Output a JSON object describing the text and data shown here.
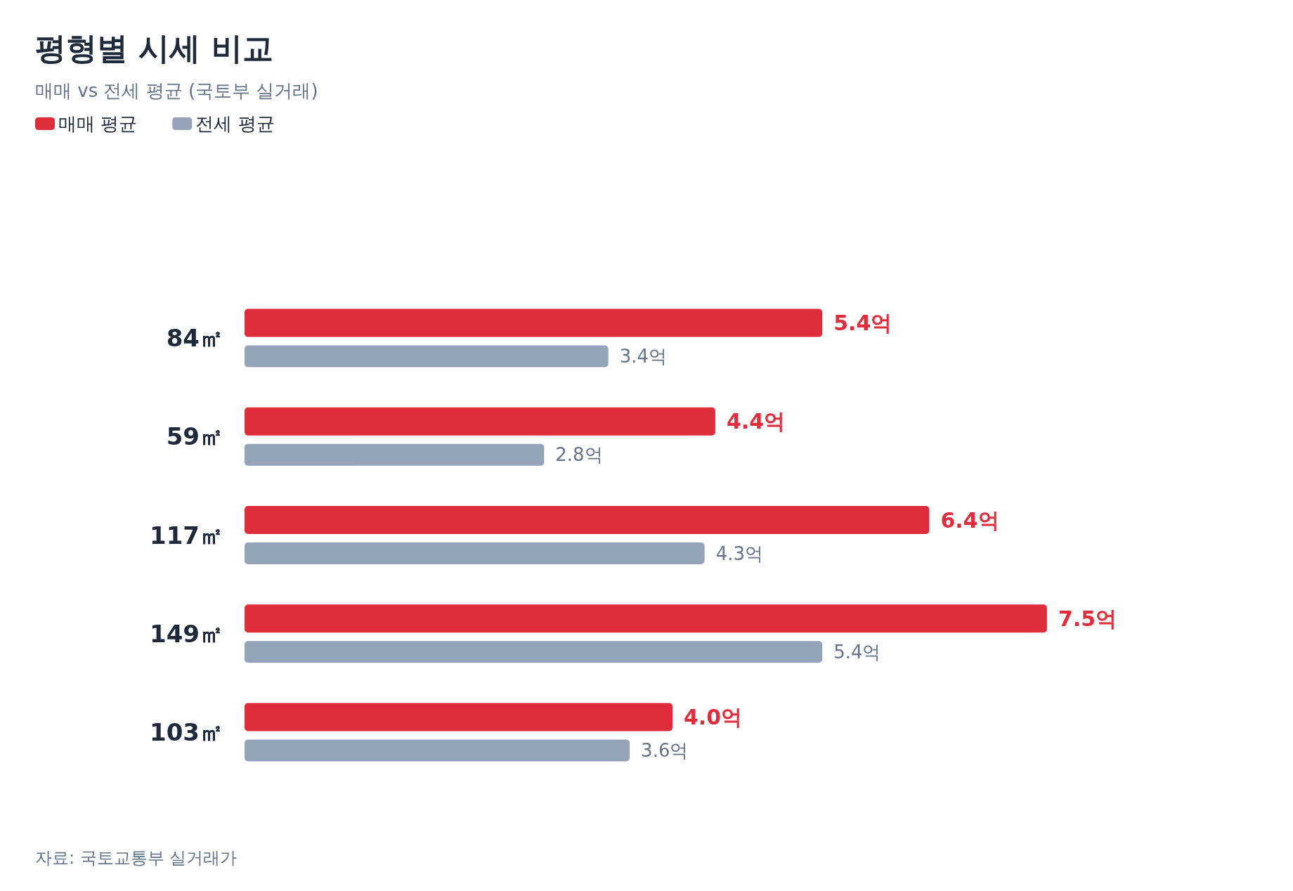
{
  "chart_data": {
    "type": "bar",
    "orientation": "horizontal",
    "title": "평형별 시세 비교",
    "subtitle": "매매 vs 전세 평균 (국토부 실거래)",
    "categories": [
      "84㎡",
      "59㎡",
      "117㎡",
      "149㎡",
      "103㎡"
    ],
    "series": [
      {
        "name": "매매 평균",
        "color": "#e02d3c",
        "values": [
          5.4,
          4.4,
          6.4,
          7.5,
          4.0
        ],
        "value_labels": [
          "5.4억",
          "4.4억",
          "6.4억",
          "7.5억",
          "4.0억"
        ]
      },
      {
        "name": "전세 평균",
        "color": "#94a3b8",
        "values": [
          3.4,
          2.8,
          4.3,
          5.4,
          3.6
        ],
        "value_labels": [
          "3.4억",
          "2.8억",
          "4.3억",
          "5.4억",
          "3.6억"
        ]
      }
    ],
    "legend": "top left",
    "grid": false,
    "tick_labels": "y",
    "annotations": [
      "자료: 국토교통부 실거래가"
    ]
  }
}
